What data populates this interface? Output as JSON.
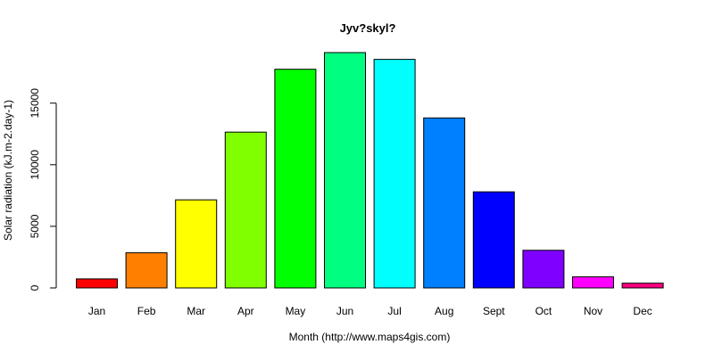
{
  "chart_data": {
    "type": "bar",
    "title": "Jyv?skyl?",
    "xlabel": "Month (http://www.maps4gis.com)",
    "ylabel": "Solar radiation (kJ.m-2.day-1)",
    "categories": [
      "Jan",
      "Feb",
      "Mar",
      "Apr",
      "May",
      "Jun",
      "Jul",
      "Aug",
      "Sept",
      "Oct",
      "Nov",
      "Dec"
    ],
    "values": [
      730,
      2850,
      7150,
      12650,
      17750,
      19100,
      18550,
      13800,
      7800,
      3050,
      900,
      380
    ],
    "colors": [
      "#FF0000",
      "#FF8000",
      "#FFFF00",
      "#80FF00",
      "#00FF00",
      "#00FF80",
      "#00FFFF",
      "#0080FF",
      "#0000FF",
      "#8000FF",
      "#FF00FF",
      "#FF0080"
    ],
    "ylim": [
      0,
      19100
    ],
    "yticks": [
      0,
      5000,
      10000,
      15000
    ],
    "grid": false,
    "legend": "none"
  }
}
